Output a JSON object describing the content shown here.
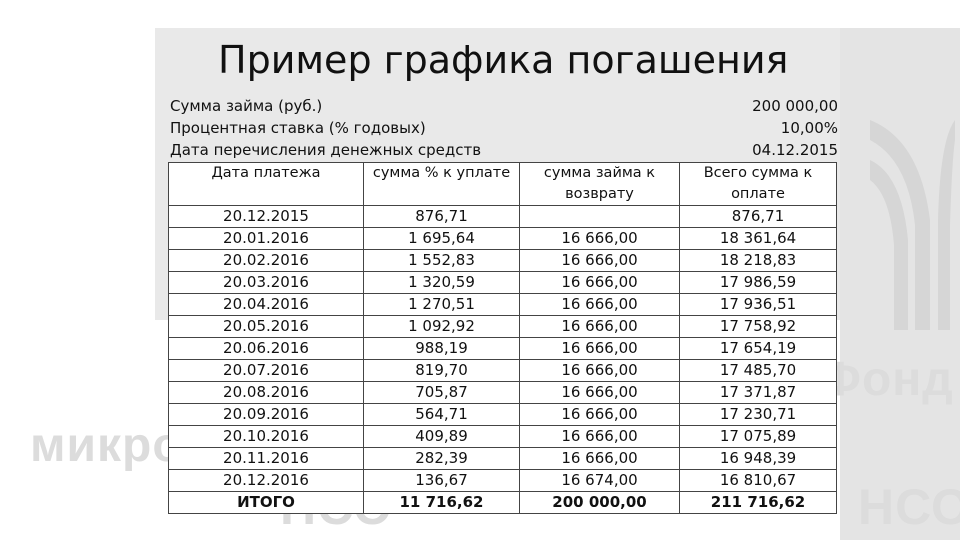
{
  "slide": {
    "title": "Пример графика погашения",
    "watermark_word1": "Фонд",
    "watermark_word2": "микрофинансирования",
    "watermark_word3": "НСО",
    "watermark_color": "#dcdcdc"
  },
  "loan_info": [
    {
      "label": "Сумма займа (руб.)",
      "value": "200 000,00"
    },
    {
      "label": "Процентная ставка (% годовых)",
      "value": "10,00%"
    },
    {
      "label": "Дата перечисления денежных средств",
      "value": "04.12.2015"
    }
  ],
  "table": {
    "headers": [
      "Дата платежа",
      "сумма % к уплате",
      "сумма займа к возврату",
      "Всего сумма к оплате"
    ],
    "rows": [
      [
        "20.12.2015",
        "876,71",
        "",
        "876,71"
      ],
      [
        "20.01.2016",
        "1 695,64",
        "16 666,00",
        "18 361,64"
      ],
      [
        "20.02.2016",
        "1 552,83",
        "16 666,00",
        "18 218,83"
      ],
      [
        "20.03.2016",
        "1 320,59",
        "16 666,00",
        "17 986,59"
      ],
      [
        "20.04.2016",
        "1 270,51",
        "16 666,00",
        "17 936,51"
      ],
      [
        "20.05.2016",
        "1 092,92",
        "16 666,00",
        "17 758,92"
      ],
      [
        "20.06.2016",
        "988,19",
        "16 666,00",
        "17 654,19"
      ],
      [
        "20.07.2016",
        "819,70",
        "16 666,00",
        "17 485,70"
      ],
      [
        "20.08.2016",
        "705,87",
        "16 666,00",
        "17 371,87"
      ],
      [
        "20.09.2016",
        "564,71",
        "16 666,00",
        "17 230,71"
      ],
      [
        "20.10.2016",
        "409,89",
        "16 666,00",
        "17 075,89"
      ],
      [
        "20.11.2016",
        "282,39",
        "16 666,00",
        "16 948,39"
      ],
      [
        "20.12.2016",
        "136,67",
        "16 674,00",
        "16 810,67"
      ]
    ],
    "total": [
      "ИТОГО",
      "11 716,62",
      "200 000,00",
      "211 716,62"
    ]
  }
}
